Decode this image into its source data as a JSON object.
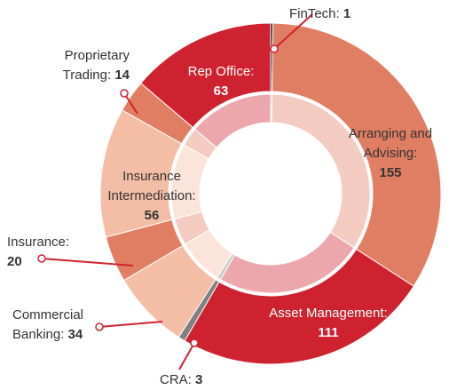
{
  "chart_data": {
    "type": "donut",
    "categories": [
      "FinTech:",
      "Arranging and Advising:",
      "Asset Management:",
      "CRA:",
      "Commercial Banking:",
      "Insurance:",
      "Insurance Intermediation:",
      "Proprietary Trading:",
      "Rep Office:"
    ],
    "values": [
      1,
      155,
      111,
      3,
      34,
      20,
      56,
      14,
      63
    ],
    "colors": [
      "#1a1a1a",
      "#e07e63",
      "#cf2230",
      "#808080",
      "#f4bda6",
      "#e07e63",
      "#f4bda6",
      "#e07e63",
      "#cf2230"
    ]
  }
}
